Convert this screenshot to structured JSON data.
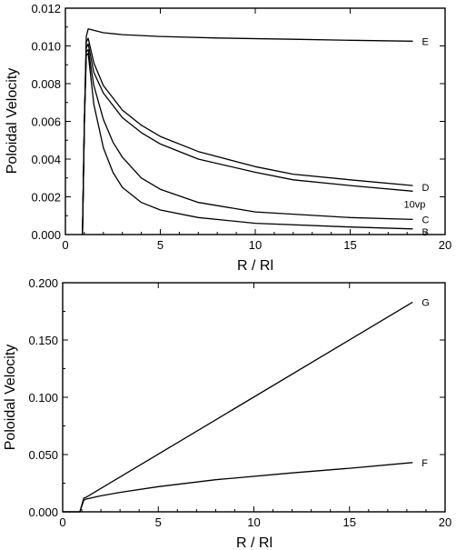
{
  "chart_data": [
    {
      "type": "line",
      "xlabel": "R / Rl",
      "ylabel": "Poloidal Velocity",
      "xlim": [
        0,
        20
      ],
      "ylim": [
        0,
        0.012
      ],
      "x_ticks": [
        "0",
        "5",
        "10",
        "15",
        "20"
      ],
      "y_ticks": [
        "0.000",
        "0.002",
        "0.004",
        "0.006",
        "0.008",
        "0.010",
        "0.012"
      ],
      "grid": false,
      "series": [
        {
          "name": "E",
          "x": [
            0.9,
            1.0,
            1.1,
            1.2,
            2,
            3,
            5,
            8,
            12,
            15,
            18.3
          ],
          "y": [
            0,
            0.006,
            0.0105,
            0.0109,
            0.0107,
            0.0106,
            0.0105,
            0.01042,
            0.01035,
            0.0103,
            0.01025
          ]
        },
        {
          "name": "D",
          "x": [
            0.9,
            1.0,
            1.1,
            1.2,
            1.5,
            2,
            3,
            4,
            5,
            7,
            10,
            12,
            15,
            18.3
          ],
          "y": [
            0,
            0.006,
            0.0102,
            0.0104,
            0.0091,
            0.0079,
            0.0066,
            0.0058,
            0.0052,
            0.0044,
            0.0036,
            0.0032,
            0.0029,
            0.0026
          ]
        },
        {
          "name": "10vp",
          "x": [
            0.9,
            1.0,
            1.1,
            1.2,
            1.5,
            2,
            3,
            4,
            5,
            7,
            10,
            12,
            15,
            18.3
          ],
          "y": [
            0,
            0.006,
            0.0099,
            0.0101,
            0.0086,
            0.0075,
            0.0062,
            0.0054,
            0.0048,
            0.004,
            0.0033,
            0.0029,
            0.0026,
            0.0023
          ]
        },
        {
          "name": "C",
          "x": [
            0.9,
            1.0,
            1.1,
            1.2,
            1.5,
            2,
            2.5,
            3,
            4,
            5,
            7,
            10,
            15,
            18.3
          ],
          "y": [
            0,
            0.006,
            0.0097,
            0.0098,
            0.0079,
            0.0061,
            0.0049,
            0.0041,
            0.003,
            0.0024,
            0.0017,
            0.0012,
            0.0009,
            0.0008
          ]
        },
        {
          "name": "B",
          "x": [
            0.9,
            1.0,
            1.1,
            1.2,
            1.5,
            2,
            2.5,
            3,
            4,
            5,
            7,
            10,
            15,
            18.3
          ],
          "y": [
            0,
            0.006,
            0.0095,
            0.0096,
            0.0069,
            0.0046,
            0.0033,
            0.0025,
            0.0017,
            0.0013,
            0.0009,
            0.0006,
            0.0004,
            0.0003
          ]
        }
      ]
    },
    {
      "type": "line",
      "xlabel": "R / Rl",
      "ylabel": "Poloidal Velocity",
      "xlim": [
        0,
        20
      ],
      "ylim": [
        0,
        0.2
      ],
      "x_ticks": [
        "0",
        "5",
        "10",
        "15",
        "20"
      ],
      "y_ticks": [
        "0.000",
        "0.050",
        "0.100",
        "0.150",
        "0.200"
      ],
      "grid": false,
      "series": [
        {
          "name": "G",
          "x": [
            0,
            0.9,
            1.1,
            1.2,
            18.3
          ],
          "y": [
            0,
            0,
            0.012,
            0.0125,
            0.183
          ]
        },
        {
          "name": "F",
          "x": [
            0,
            0.9,
            1.1,
            1.2,
            2,
            3,
            5,
            8,
            12,
            15,
            18.3
          ],
          "y": [
            0,
            0,
            0.01,
            0.011,
            0.014,
            0.017,
            0.022,
            0.028,
            0.034,
            0.038,
            0.043
          ]
        }
      ]
    }
  ]
}
